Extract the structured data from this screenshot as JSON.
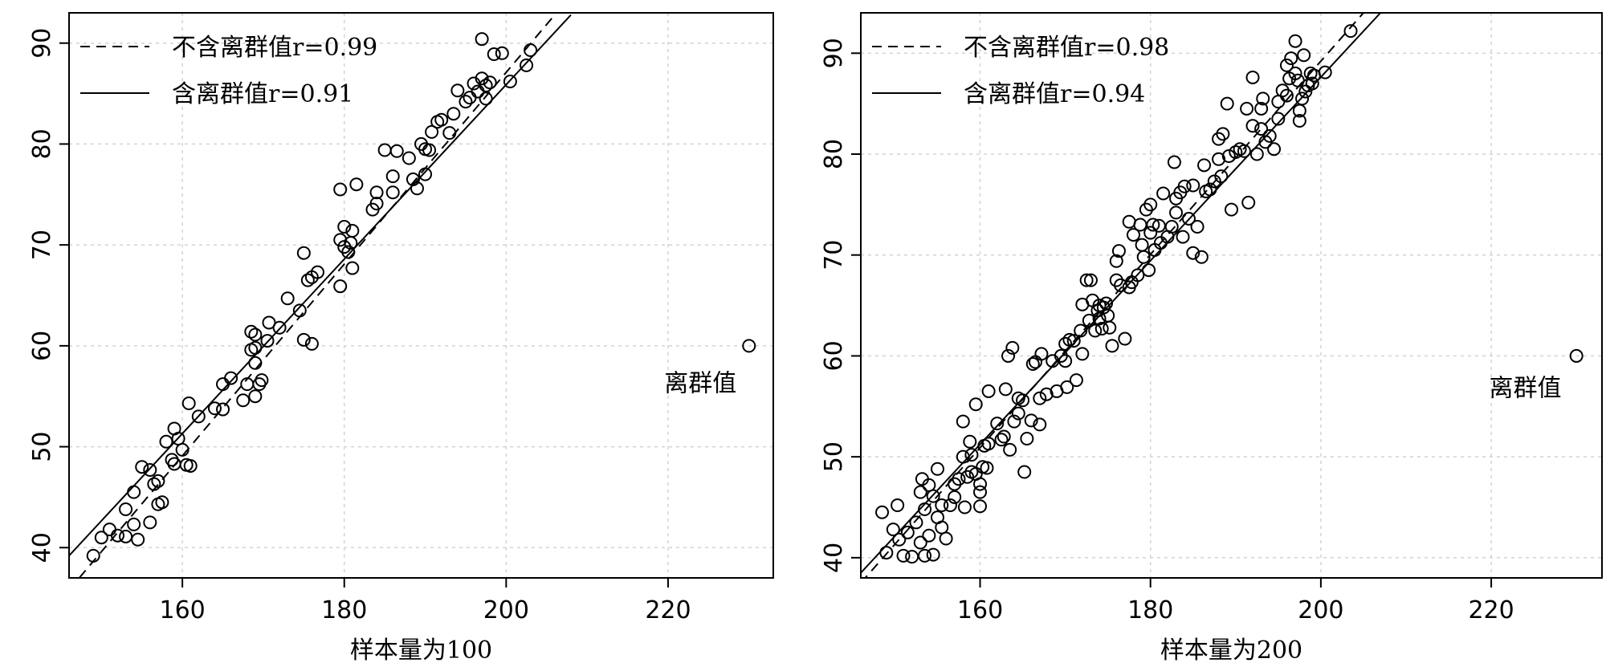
{
  "chart_data": [
    {
      "type": "scatter",
      "xlabel": "样本量为100",
      "ylabel": "",
      "xlim": [
        146,
        233
      ],
      "ylim": [
        37,
        93
      ],
      "x_ticks": [
        160,
        180,
        200,
        220
      ],
      "y_ticks": [
        40,
        50,
        60,
        70,
        80,
        90
      ],
      "grid": true,
      "legend_position": "top-left",
      "legend": [
        {
          "label": "不含离群值r=0.99",
          "style": "dashed"
        },
        {
          "label": "含离群值r=0.91",
          "style": "solid"
        }
      ],
      "fit_lines": [
        {
          "label": "不含离群值r=0.99",
          "style": "dashed",
          "x": [
            146,
            206
          ],
          "y": [
            35.8,
            92.8
          ]
        },
        {
          "label": "含离群值r=0.91",
          "style": "solid",
          "x": [
            146,
            208
          ],
          "y": [
            39.2,
            92.8
          ]
        }
      ],
      "annotation": {
        "text": "离群值",
        "x": 224,
        "y": 55.5
      },
      "outlier": {
        "x": 230,
        "y": 60
      },
      "points": [
        [
          149,
          39.2
        ],
        [
          150,
          41
        ],
        [
          151,
          41.8
        ],
        [
          152,
          41.2
        ],
        [
          153,
          43.8
        ],
        [
          153,
          41.1
        ],
        [
          154,
          45.5
        ],
        [
          154,
          42.3
        ],
        [
          154.5,
          40.8
        ],
        [
          155,
          48
        ],
        [
          156,
          47.7
        ],
        [
          156,
          42.5
        ],
        [
          156.5,
          46.3
        ],
        [
          157,
          46.6
        ],
        [
          157,
          44.3
        ],
        [
          157.5,
          44.5
        ],
        [
          158,
          50.5
        ],
        [
          158.7,
          48.7
        ],
        [
          159,
          51.8
        ],
        [
          159,
          48.3
        ],
        [
          159.5,
          50.8
        ],
        [
          160,
          49.7
        ],
        [
          160.5,
          48.2
        ],
        [
          160.8,
          54.3
        ],
        [
          161,
          48.1
        ],
        [
          162,
          53
        ],
        [
          164,
          53.8
        ],
        [
          165,
          53.7
        ],
        [
          165,
          56.2
        ],
        [
          166,
          56.8
        ],
        [
          167.5,
          54.6
        ],
        [
          168,
          56.2
        ],
        [
          168.5,
          61.4
        ],
        [
          168.5,
          59.6
        ],
        [
          169,
          58.3
        ],
        [
          169,
          59.8
        ],
        [
          169,
          55
        ],
        [
          169,
          61.1
        ],
        [
          169.5,
          56.2
        ],
        [
          169.8,
          56.6
        ],
        [
          170.5,
          60.5
        ],
        [
          170.7,
          62.3
        ],
        [
          172,
          61.8
        ],
        [
          173,
          64.7
        ],
        [
          174.5,
          63.5
        ],
        [
          175,
          60.6
        ],
        [
          175,
          69.2
        ],
        [
          175.5,
          66.5
        ],
        [
          176,
          66.8
        ],
        [
          176,
          60.2
        ],
        [
          176.7,
          67.3
        ],
        [
          179.5,
          70.5
        ],
        [
          179.5,
          65.9
        ],
        [
          179.5,
          75.5
        ],
        [
          180,
          69.8
        ],
        [
          180,
          71.8
        ],
        [
          180.5,
          69.3
        ],
        [
          180.8,
          70.2
        ],
        [
          181,
          71.4
        ],
        [
          181,
          67.7
        ],
        [
          181.5,
          76
        ],
        [
          183.5,
          73.5
        ],
        [
          184,
          74.1
        ],
        [
          184,
          75.2
        ],
        [
          185,
          79.4
        ],
        [
          186,
          76.8
        ],
        [
          186,
          75.2
        ],
        [
          186.5,
          79.3
        ],
        [
          188,
          78.6
        ],
        [
          188.5,
          76.5
        ],
        [
          189,
          75.6
        ],
        [
          189.5,
          80
        ],
        [
          190,
          79.5
        ],
        [
          190,
          77
        ],
        [
          190.5,
          79.4
        ],
        [
          190.8,
          81.2
        ],
        [
          191.5,
          82.2
        ],
        [
          192,
          82.4
        ],
        [
          193,
          81.1
        ],
        [
          193.5,
          83
        ],
        [
          194,
          85.3
        ],
        [
          195,
          84.2
        ],
        [
          195.5,
          84.6
        ],
        [
          196,
          86
        ],
        [
          196.5,
          85.2
        ],
        [
          197,
          86.5
        ],
        [
          197,
          90.4
        ],
        [
          197.5,
          84.5
        ],
        [
          197.5,
          85.8
        ],
        [
          198,
          86.1
        ],
        [
          198.5,
          88.9
        ],
        [
          199.5,
          89
        ],
        [
          200.5,
          86.2
        ],
        [
          202.5,
          87.8
        ],
        [
          203,
          89.3
        ],
        [
          230,
          60
        ]
      ]
    },
    {
      "type": "scatter",
      "xlabel": "样本量为200",
      "ylabel": "",
      "xlim": [
        146,
        233
      ],
      "ylim": [
        38,
        94
      ],
      "x_ticks": [
        160,
        180,
        200,
        220
      ],
      "y_ticks": [
        40,
        50,
        60,
        70,
        80,
        90
      ],
      "grid": true,
      "legend_position": "top-left",
      "legend": [
        {
          "label": "不含离群值r=0.98",
          "style": "dashed"
        },
        {
          "label": "含离群值r=0.94",
          "style": "solid"
        }
      ],
      "fit_lines": [
        {
          "label": "不含离群值r=0.98",
          "style": "dashed",
          "x": [
            146,
            205
          ],
          "y": [
            37.5,
            94
          ]
        },
        {
          "label": "含离群值r=0.94",
          "style": "solid",
          "x": [
            146,
            207
          ],
          "y": [
            38.5,
            94
          ]
        }
      ],
      "annotation": {
        "text": "离群值",
        "x": 224,
        "y": 56
      },
      "outlier": {
        "x": 230,
        "y": 60
      },
      "points": [
        [
          148.5,
          44.5
        ],
        [
          149,
          40.5
        ],
        [
          149.8,
          42.8
        ],
        [
          150.3,
          45.2
        ],
        [
          150.5,
          41.8
        ],
        [
          151,
          40.2
        ],
        [
          151.5,
          42.5
        ],
        [
          152,
          40.1
        ],
        [
          152.5,
          43.5
        ],
        [
          153,
          41.5
        ],
        [
          153,
          46.5
        ],
        [
          153.2,
          47.8
        ],
        [
          153.5,
          44.8
        ],
        [
          153.5,
          40.2
        ],
        [
          154,
          47.2
        ],
        [
          154,
          42.2
        ],
        [
          154.5,
          46.1
        ],
        [
          154.5,
          40.3
        ],
        [
          155,
          48.8
        ],
        [
          155,
          44
        ],
        [
          155.5,
          45.2
        ],
        [
          155.5,
          43
        ],
        [
          156,
          41.9
        ],
        [
          156.5,
          45.2
        ],
        [
          157,
          46
        ],
        [
          157,
          47.3
        ],
        [
          157.5,
          47.8
        ],
        [
          158,
          50
        ],
        [
          158,
          53.5
        ],
        [
          158.2,
          45
        ],
        [
          158.5,
          48
        ],
        [
          158.8,
          51.5
        ],
        [
          159,
          50.2
        ],
        [
          159,
          48.5
        ],
        [
          159.5,
          55.2
        ],
        [
          159.5,
          48.3
        ],
        [
          160,
          45.1
        ],
        [
          160,
          46.5
        ],
        [
          160,
          47.3
        ],
        [
          160.3,
          49
        ],
        [
          160.5,
          51.1
        ],
        [
          160.8,
          48.9
        ],
        [
          161,
          56.5
        ],
        [
          161,
          51.3
        ],
        [
          162,
          53.3
        ],
        [
          162.5,
          51.7
        ],
        [
          162.8,
          52
        ],
        [
          163,
          56.7
        ],
        [
          163.3,
          60
        ],
        [
          163.5,
          50.7
        ],
        [
          163.8,
          60.8
        ],
        [
          164,
          53.5
        ],
        [
          164.5,
          55.8
        ],
        [
          164.5,
          54.3
        ],
        [
          165,
          55.6
        ],
        [
          165.2,
          48.5
        ],
        [
          165.5,
          51.8
        ],
        [
          166,
          53.6
        ],
        [
          166.2,
          59.2
        ],
        [
          166.5,
          59.4
        ],
        [
          167,
          55.8
        ],
        [
          167,
          53.2
        ],
        [
          167.2,
          60.2
        ],
        [
          167.8,
          56.2
        ],
        [
          168.5,
          59.5
        ],
        [
          169,
          56.5
        ],
        [
          169.5,
          60
        ],
        [
          170,
          59.5
        ],
        [
          170,
          61.2
        ],
        [
          170.2,
          56.9
        ],
        [
          170.5,
          61.6
        ],
        [
          171,
          61.5
        ],
        [
          171.3,
          57.6
        ],
        [
          171.8,
          62.5
        ],
        [
          172,
          65.1
        ],
        [
          172,
          60.2
        ],
        [
          172.5,
          67.5
        ],
        [
          172.8,
          63.5
        ],
        [
          173,
          67.5
        ],
        [
          173.2,
          65.5
        ],
        [
          173.5,
          62.5
        ],
        [
          173.8,
          64.5
        ],
        [
          174,
          65
        ],
        [
          174,
          63.7
        ],
        [
          174.3,
          62.7
        ],
        [
          174.5,
          64.8
        ],
        [
          174.8,
          65.2
        ],
        [
          175,
          64
        ],
        [
          175.2,
          62.8
        ],
        [
          175.5,
          61
        ],
        [
          176,
          67.5
        ],
        [
          176,
          69.4
        ],
        [
          176.3,
          70.4
        ],
        [
          176.5,
          67
        ],
        [
          177,
          61.7
        ],
        [
          177.5,
          73.3
        ],
        [
          177.5,
          66.8
        ],
        [
          177.8,
          67.3
        ],
        [
          178,
          72
        ],
        [
          178.5,
          68
        ],
        [
          178.8,
          73
        ],
        [
          179,
          71
        ],
        [
          179.2,
          69.8
        ],
        [
          179.5,
          74.5
        ],
        [
          179.8,
          68.5
        ],
        [
          180,
          72.2
        ],
        [
          180,
          75
        ],
        [
          180.3,
          73
        ],
        [
          180.5,
          70.5
        ],
        [
          181,
          72.9
        ],
        [
          181.2,
          71.2
        ],
        [
          181.5,
          76.1
        ],
        [
          182,
          71.8
        ],
        [
          182.5,
          72.8
        ],
        [
          182.8,
          79.2
        ],
        [
          183,
          75.6
        ],
        [
          183,
          74.2
        ],
        [
          183.5,
          76.2
        ],
        [
          183.8,
          71.8
        ],
        [
          184,
          76.8
        ],
        [
          184.5,
          73.6
        ],
        [
          185,
          76.9
        ],
        [
          185,
          70.2
        ],
        [
          185.5,
          72.8
        ],
        [
          186,
          69.8
        ],
        [
          186.3,
          78.9
        ],
        [
          186.5,
          76.3
        ],
        [
          187,
          76.5
        ],
        [
          187.5,
          77.3
        ],
        [
          188,
          79.5
        ],
        [
          188,
          81.5
        ],
        [
          188.3,
          77.8
        ],
        [
          188.5,
          82
        ],
        [
          189,
          85
        ],
        [
          189.2,
          79.8
        ],
        [
          189.5,
          74.5
        ],
        [
          190,
          80.2
        ],
        [
          190.5,
          80.5
        ],
        [
          191,
          80.3
        ],
        [
          191.3,
          84.5
        ],
        [
          191.5,
          75.2
        ],
        [
          192,
          82.8
        ],
        [
          192,
          87.6
        ],
        [
          192.5,
          80
        ],
        [
          193,
          82.5
        ],
        [
          193,
          84.5
        ],
        [
          193.2,
          85.5
        ],
        [
          193.5,
          81.2
        ],
        [
          194,
          81.8
        ],
        [
          194.5,
          80.5
        ],
        [
          195,
          85.2
        ],
        [
          195,
          83.5
        ],
        [
          195.5,
          86.3
        ],
        [
          196,
          85.8
        ],
        [
          196,
          88.8
        ],
        [
          196.3,
          87.5
        ],
        [
          196.5,
          89.5
        ],
        [
          197,
          88
        ],
        [
          197,
          91.2
        ],
        [
          197.3,
          87.3
        ],
        [
          197.5,
          83.3
        ],
        [
          197.5,
          84.3
        ],
        [
          197.8,
          85.5
        ],
        [
          198,
          89.8
        ],
        [
          198.2,
          86.2
        ],
        [
          198.5,
          86.8
        ],
        [
          198.8,
          88
        ],
        [
          199,
          87
        ],
        [
          199.2,
          87.8
        ],
        [
          200.5,
          88.1
        ],
        [
          203.5,
          92.2
        ],
        [
          230,
          60
        ]
      ]
    }
  ]
}
